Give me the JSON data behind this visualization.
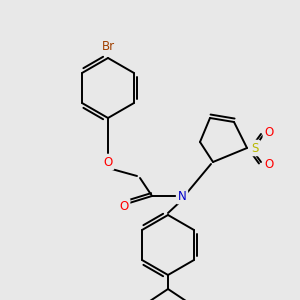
{
  "background_color": "#e8e8e8",
  "bond_color": "#000000",
  "atom_colors": {
    "Br": "#a04000",
    "O": "#ff0000",
    "N": "#0000cc",
    "S": "#b8b800",
    "C": "#000000"
  },
  "line_width": 1.4,
  "font_size": 8.5,
  "figsize": [
    3.0,
    3.0
  ],
  "dpi": 100
}
